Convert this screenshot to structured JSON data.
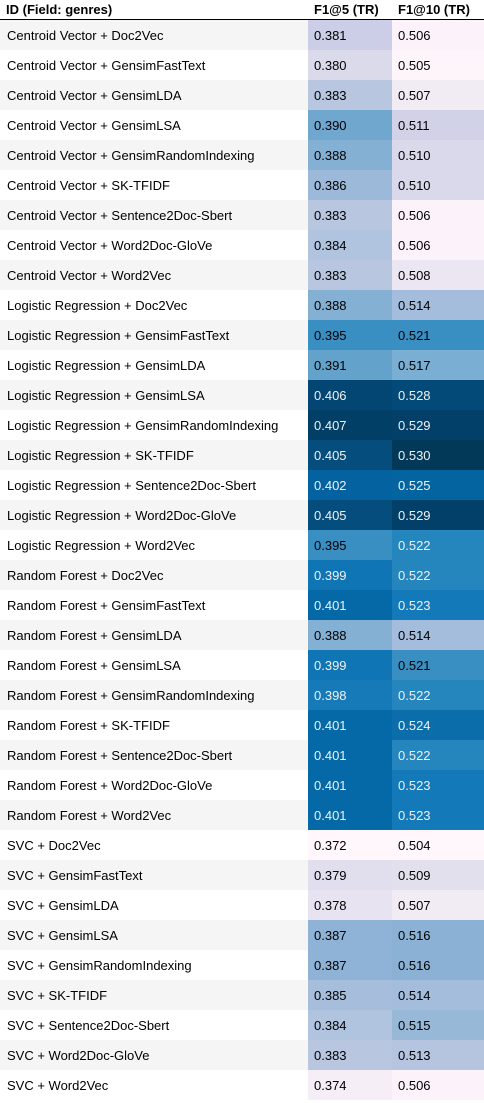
{
  "table": {
    "headers": [
      "ID (Field: genres)",
      "F1@5 (TR)",
      "F1@10 (TR)"
    ],
    "rows": [
      {
        "id": "Centroid Vector + Doc2Vec",
        "f1_5": "0.381",
        "f1_10": "0.506",
        "c5": "#cbcee6",
        "c10": "#fcf3fa"
      },
      {
        "id": "Centroid Vector + GensimFastText",
        "f1_5": "0.380",
        "f1_10": "0.505",
        "c5": "#dbdaeb",
        "c10": "#fdf5fa"
      },
      {
        "id": "Centroid Vector + GensimLDA",
        "f1_5": "0.383",
        "f1_10": "0.507",
        "c5": "#b8c6e0",
        "c10": "#f1ebf4"
      },
      {
        "id": "Centroid Vector + GensimLSA",
        "f1_5": "0.390",
        "f1_10": "0.511",
        "c5": "#6fa7cf",
        "c10": "#d1d2e7"
      },
      {
        "id": "Centroid Vector + GensimRandomIndexing",
        "f1_5": "0.388",
        "f1_10": "0.510",
        "c5": "#84b0d4",
        "c10": "#dad9ec"
      },
      {
        "id": "Centroid Vector + SK-TFIDF",
        "f1_5": "0.386",
        "f1_10": "0.510",
        "c5": "#9cb9d9",
        "c10": "#dad9ec"
      },
      {
        "id": "Centroid Vector + Sentence2Doc-Sbert",
        "f1_5": "0.383",
        "f1_10": "0.506",
        "c5": "#b8c6e0",
        "c10": "#fcf3fa"
      },
      {
        "id": "Centroid Vector + Word2Doc-GloVe",
        "f1_5": "0.384",
        "f1_10": "0.506",
        "c5": "#b0c3df",
        "c10": "#fcf3fa"
      },
      {
        "id": "Centroid Vector + Word2Vec",
        "f1_5": "0.383",
        "f1_10": "0.508",
        "c5": "#b8c6e0",
        "c10": "#ebe6f2"
      },
      {
        "id": "Logistic Regression + Doc2Vec",
        "f1_5": "0.388",
        "f1_10": "0.514",
        "c5": "#84b0d4",
        "c10": "#a5bddc"
      },
      {
        "id": "Logistic Regression + GensimFastText",
        "f1_5": "0.395",
        "f1_10": "0.521",
        "c5": "#3a8fc2",
        "c10": "#3a8fc2"
      },
      {
        "id": "Logistic Regression + GensimLDA",
        "f1_5": "0.391",
        "f1_10": "0.517",
        "c5": "#63a2cb",
        "c10": "#7aaed3"
      },
      {
        "id": "Logistic Regression + GensimLSA",
        "f1_5": "0.406",
        "f1_10": "0.528",
        "c5": "#044673",
        "c10": "#034a78"
      },
      {
        "id": "Logistic Regression + GensimRandomIndexing",
        "f1_5": "0.407",
        "f1_10": "0.529",
        "c5": "#023f66",
        "c10": "#02406a"
      },
      {
        "id": "Logistic Regression + SK-TFIDF",
        "f1_5": "0.405",
        "f1_10": "0.530",
        "c5": "#044d7c",
        "c10": "#023858"
      },
      {
        "id": "Logistic Regression + Sentence2Doc-Sbert",
        "f1_5": "0.402",
        "f1_10": "0.525",
        "c5": "#0562a0",
        "c10": "#0464a0"
      },
      {
        "id": "Logistic Regression + Word2Doc-GloVe",
        "f1_5": "0.405",
        "f1_10": "0.529",
        "c5": "#044d7c",
        "c10": "#02406a"
      },
      {
        "id": "Logistic Regression + Word2Vec",
        "f1_5": "0.395",
        "f1_10": "0.522",
        "c5": "#3a8fc2",
        "c10": "#2585bd"
      },
      {
        "id": "Random Forest + Doc2Vec",
        "f1_5": "0.399",
        "f1_10": "0.522",
        "c5": "#0f75b4",
        "c10": "#2585bd"
      },
      {
        "id": "Random Forest + GensimFastText",
        "f1_5": "0.401",
        "f1_10": "0.523",
        "c5": "#0569a8",
        "c10": "#1479b8"
      },
      {
        "id": "Random Forest + GensimLDA",
        "f1_5": "0.388",
        "f1_10": "0.514",
        "c5": "#84b0d4",
        "c10": "#a5bddc"
      },
      {
        "id": "Random Forest + GensimLSA",
        "f1_5": "0.399",
        "f1_10": "0.521",
        "c5": "#0f75b4",
        "c10": "#3a8fc2"
      },
      {
        "id": "Random Forest + GensimRandomIndexing",
        "f1_5": "0.398",
        "f1_10": "0.522",
        "c5": "#167ab8",
        "c10": "#2585bd"
      },
      {
        "id": "Random Forest + SK-TFIDF",
        "f1_5": "0.401",
        "f1_10": "0.524",
        "c5": "#0569a8",
        "c10": "#0b6eab"
      },
      {
        "id": "Random Forest + Sentence2Doc-Sbert",
        "f1_5": "0.401",
        "f1_10": "0.522",
        "c5": "#0569a8",
        "c10": "#2585bd"
      },
      {
        "id": "Random Forest + Word2Doc-GloVe",
        "f1_5": "0.401",
        "f1_10": "0.523",
        "c5": "#0569a8",
        "c10": "#1479b8"
      },
      {
        "id": "Random Forest + Word2Vec",
        "f1_5": "0.401",
        "f1_10": "0.523",
        "c5": "#0569a8",
        "c10": "#1479b8"
      },
      {
        "id": "SVC + Doc2Vec",
        "f1_5": "0.372",
        "f1_10": "0.504",
        "c5": "#fff7fb",
        "c10": "#fff7fb"
      },
      {
        "id": "SVC + GensimFastText",
        "f1_5": "0.379",
        "f1_10": "0.509",
        "c5": "#e1dfed",
        "c10": "#e3e0ee"
      },
      {
        "id": "SVC + GensimLDA",
        "f1_5": "0.378",
        "f1_10": "0.507",
        "c5": "#e7e3f0",
        "c10": "#f1ebf4"
      },
      {
        "id": "SVC + GensimLSA",
        "f1_5": "0.387",
        "f1_10": "0.516",
        "c5": "#8fb3d6",
        "c10": "#8bb2d5"
      },
      {
        "id": "SVC + GensimRandomIndexing",
        "f1_5": "0.387",
        "f1_10": "0.516",
        "c5": "#8fb3d6",
        "c10": "#8bb2d5"
      },
      {
        "id": "SVC + SK-TFIDF",
        "f1_5": "0.385",
        "f1_10": "0.514",
        "c5": "#a6bddb",
        "c10": "#a5bddc"
      },
      {
        "id": "SVC + Sentence2Doc-Sbert",
        "f1_5": "0.384",
        "f1_10": "0.515",
        "c5": "#b0c3df",
        "c10": "#98b8d8"
      },
      {
        "id": "SVC + Word2Doc-GloVe",
        "f1_5": "0.383",
        "f1_10": "0.513",
        "c5": "#b8c6e0",
        "c10": "#b5c4df"
      },
      {
        "id": "SVC + Word2Vec",
        "f1_5": "0.374",
        "f1_10": "0.506",
        "c5": "#f6eef6",
        "c10": "#fcf3fa"
      }
    ]
  }
}
